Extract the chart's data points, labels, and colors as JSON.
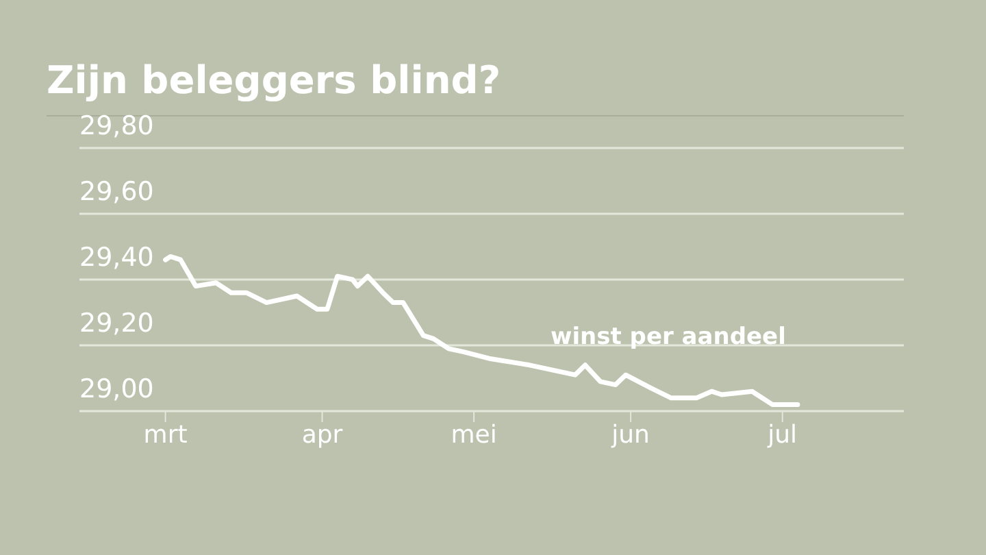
{
  "chart_data": {
    "type": "line",
    "title": "Zijn beleggers blind?",
    "x": [
      "--03-01",
      "--03-02",
      "--03-04",
      "--03-07",
      "--03-11",
      "--03-14",
      "--03-17",
      "--03-21",
      "--03-27",
      "--03-31",
      "--04-02",
      "--04-04",
      "--04-07",
      "--04-08",
      "--04-10",
      "--04-13",
      "--04-15",
      "--04-17",
      "--04-21",
      "--04-23",
      "--04-26",
      "--04-29",
      "--05-04",
      "--05-12",
      "--05-21",
      "--05-23",
      "--05-26",
      "--05-29",
      "--05-31",
      "--06-05",
      "--06-09",
      "--06-14",
      "--06-17",
      "--06-19",
      "--06-25",
      "--06-29",
      "--07-04"
    ],
    "values": [
      29.46,
      29.47,
      29.46,
      29.38,
      29.39,
      29.36,
      29.36,
      29.33,
      29.35,
      29.31,
      29.31,
      29.41,
      29.4,
      29.38,
      29.41,
      29.36,
      29.33,
      29.33,
      29.23,
      29.22,
      29.19,
      29.18,
      29.16,
      29.14,
      29.11,
      29.14,
      29.09,
      29.08,
      29.11,
      29.07,
      29.04,
      29.04,
      29.06,
      29.05,
      29.06,
      29.02,
      29.02
    ],
    "color": "#ffffff",
    "xlim": [
      "--02-12",
      "--07-25"
    ],
    "xticks": [
      {
        "value": "--03-01",
        "label": "mrt"
      },
      {
        "value": "--04-01",
        "label": "apr"
      },
      {
        "value": "--05-01",
        "label": "mei"
      },
      {
        "value": "--06-01",
        "label": "jun"
      },
      {
        "value": "--07-01",
        "label": "jul"
      }
    ],
    "ylim": [
      29,
      29.8
    ],
    "yticks": [
      {
        "value": 29,
        "label": "29,00"
      },
      {
        "value": 29.2,
        "label": "29,20"
      },
      {
        "value": 29.4,
        "label": "29,40"
      },
      {
        "value": 29.6,
        "label": "29,60"
      },
      {
        "value": 29.8,
        "label": "29,80"
      }
    ],
    "grid": "y",
    "marker": "none",
    "line_style": "solid",
    "annotations": [
      "winst per aandeel"
    ]
  }
}
